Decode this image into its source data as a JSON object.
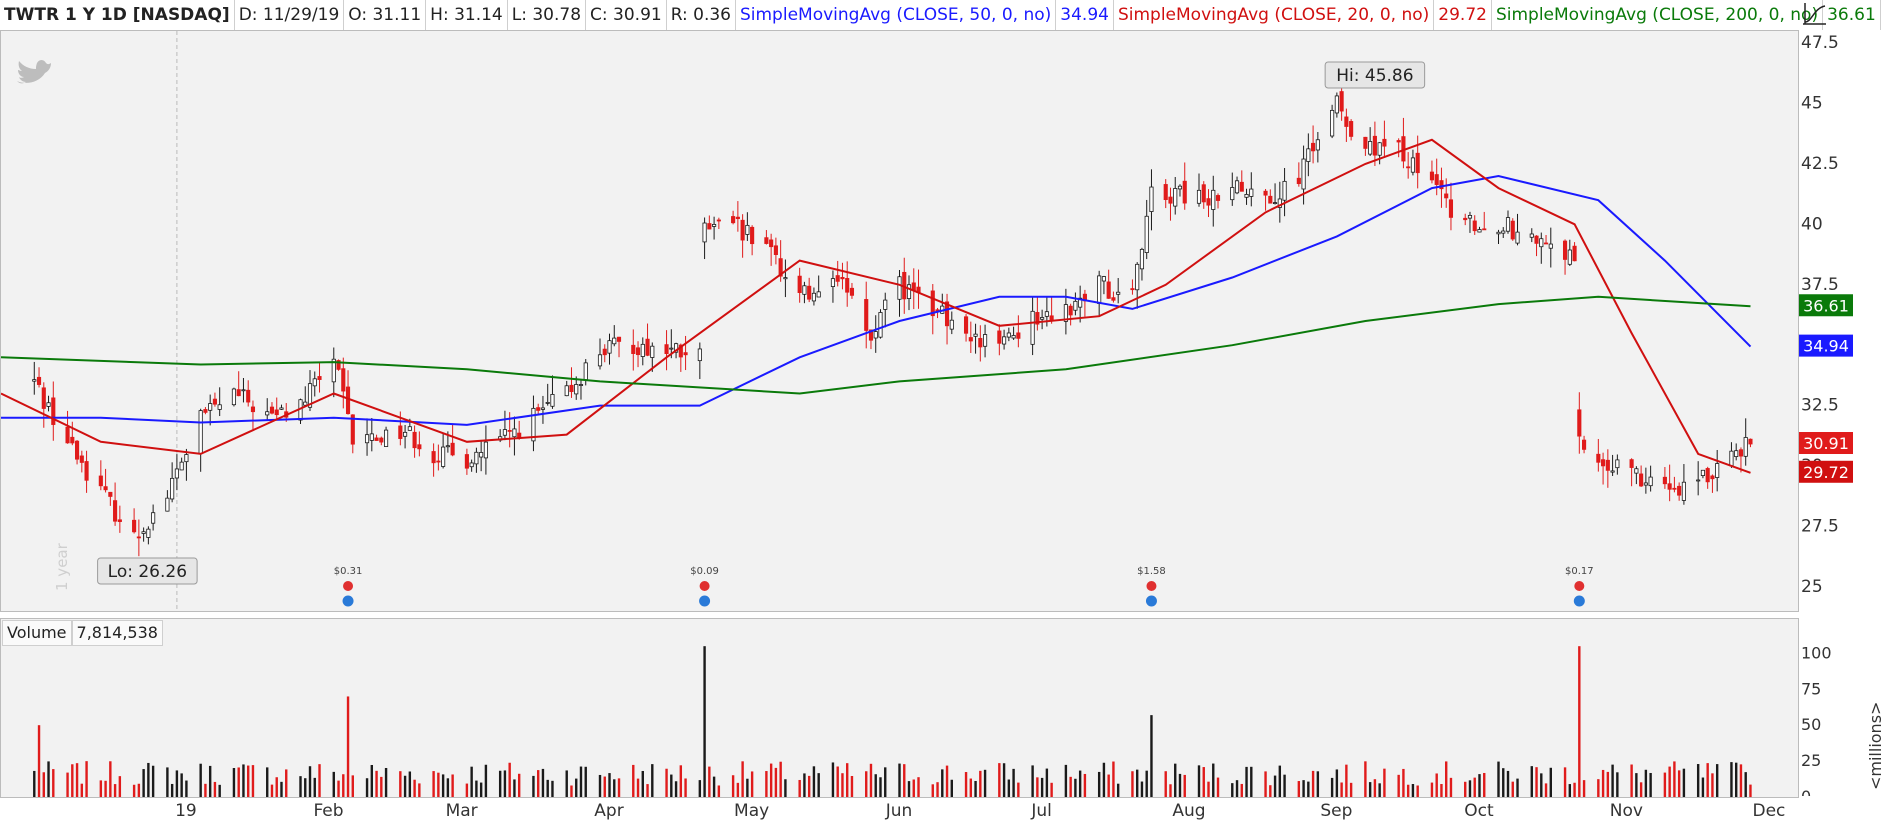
{
  "header": {
    "symbol": "TWTR 1 Y 1D [NASDAQ]",
    "date": "D: 11/29/19",
    "open": "O: 31.11",
    "high": "H: 31.14",
    "low": "L: 30.78",
    "close": "C: 30.91",
    "range": "R: 0.36",
    "sma50_label": "SimpleMovingAvg (CLOSE, 50, 0, no)",
    "sma50_value": "34.94",
    "sma20_label": "SimpleMovingAvg (CLOSE, 20, 0, no)",
    "sma20_value": "29.72",
    "sma200_label": "SimpleMovingAvg (CLOSE, 200, 0, no)",
    "sma200_value": "36.61"
  },
  "volume_header": {
    "label": "Volume",
    "value": "7,814,538"
  },
  "colors": {
    "up": "#1a1a1a",
    "down": "#e01b1b",
    "sma50": "#1a1aff",
    "sma20": "#d01010",
    "sma200": "#0a7a0a",
    "panel": "#f2f2f2"
  },
  "icons": {
    "logo": "twitter-bird-icon",
    "tool": "drawing-tool-icon"
  },
  "chart_data": [
    {
      "type": "candlestick",
      "ylim": [
        24,
        48
      ],
      "y_ticks": [
        "25",
        "27.5",
        "30",
        "32.5",
        "35",
        "37.5",
        "40",
        "42.5",
        "45",
        "47.5"
      ],
      "x_ticks": [
        "19",
        "Feb",
        "Mar",
        "Apr",
        "May",
        "Jun",
        "Jul",
        "Aug",
        "Sep",
        "Oct",
        "Nov",
        "Dec"
      ],
      "annotations": {
        "high": "Hi: 45.86",
        "low": "Lo: 26.26",
        "watermark": "1 year"
      },
      "last_value_badges": [
        {
          "series": "SMA 200",
          "value": "36.61",
          "color": "#0a7a0a"
        },
        {
          "series": "SMA 50",
          "value": "34.94",
          "color": "#1a1aff"
        },
        {
          "series": "Close",
          "value": "30.91",
          "color": "#e01b1b"
        },
        {
          "series": "SMA 20",
          "value": "29.72",
          "color": "#d01010"
        }
      ],
      "events": [
        {
          "date": "2019-02-07",
          "label": "$0.31"
        },
        {
          "date": "2019-04-23",
          "label": "$0.09"
        },
        {
          "date": "2019-07-26",
          "label": "$1.58"
        },
        {
          "date": "2019-10-24",
          "label": "$0.17"
        }
      ],
      "close_path": [
        {
          "date": "2018-12-03",
          "close": 33.5
        },
        {
          "date": "2018-12-10",
          "close": 31.0
        },
        {
          "date": "2018-12-17",
          "close": 29.0
        },
        {
          "date": "2018-12-24",
          "close": 27.0
        },
        {
          "date": "2018-12-31",
          "close": 28.8
        },
        {
          "date": "2019-01-07",
          "close": 32.0
        },
        {
          "date": "2019-01-14",
          "close": 33.0
        },
        {
          "date": "2019-01-22",
          "close": 32.0
        },
        {
          "date": "2019-01-28",
          "close": 32.5
        },
        {
          "date": "2019-02-04",
          "close": 34.5
        },
        {
          "date": "2019-02-08",
          "close": 31.0
        },
        {
          "date": "2019-02-19",
          "close": 31.5
        },
        {
          "date": "2019-02-25",
          "close": 30.5
        },
        {
          "date": "2019-03-04",
          "close": 30.3
        },
        {
          "date": "2019-03-11",
          "close": 31.0
        },
        {
          "date": "2019-03-18",
          "close": 32.0
        },
        {
          "date": "2019-03-25",
          "close": 33.0
        },
        {
          "date": "2019-04-01",
          "close": 34.8
        },
        {
          "date": "2019-04-08",
          "close": 35.0
        },
        {
          "date": "2019-04-15",
          "close": 34.8
        },
        {
          "date": "2019-04-22",
          "close": 34.5
        },
        {
          "date": "2019-04-23",
          "close": 39.8
        },
        {
          "date": "2019-04-29",
          "close": 40.0
        },
        {
          "date": "2019-05-06",
          "close": 39.0
        },
        {
          "date": "2019-05-13",
          "close": 37.0
        },
        {
          "date": "2019-05-20",
          "close": 38.0
        },
        {
          "date": "2019-05-28",
          "close": 35.5
        },
        {
          "date": "2019-06-03",
          "close": 37.5
        },
        {
          "date": "2019-06-10",
          "close": 36.5
        },
        {
          "date": "2019-06-17",
          "close": 35.5
        },
        {
          "date": "2019-06-24",
          "close": 35.0
        },
        {
          "date": "2019-07-01",
          "close": 36.0
        },
        {
          "date": "2019-07-08",
          "close": 36.5
        },
        {
          "date": "2019-07-15",
          "close": 37.5
        },
        {
          "date": "2019-07-22",
          "close": 37.0
        },
        {
          "date": "2019-07-26",
          "close": 41.5
        },
        {
          "date": "2019-08-05",
          "close": 41.0
        },
        {
          "date": "2019-08-12",
          "close": 41.5
        },
        {
          "date": "2019-08-19",
          "close": 41.0
        },
        {
          "date": "2019-08-26",
          "close": 42.0
        },
        {
          "date": "2019-09-03",
          "close": 45.0
        },
        {
          "date": "2019-09-09",
          "close": 43.0
        },
        {
          "date": "2019-09-16",
          "close": 43.0
        },
        {
          "date": "2019-09-23",
          "close": 41.5
        },
        {
          "date": "2019-09-30",
          "close": 40.0
        },
        {
          "date": "2019-10-07",
          "close": 40.0
        },
        {
          "date": "2019-10-14",
          "close": 39.5
        },
        {
          "date": "2019-10-23",
          "close": 38.5
        },
        {
          "date": "2019-10-24",
          "close": 31.0
        },
        {
          "date": "2019-10-31",
          "close": 30.0
        },
        {
          "date": "2019-11-07",
          "close": 29.5
        },
        {
          "date": "2019-11-14",
          "close": 29.2
        },
        {
          "date": "2019-11-21",
          "close": 29.8
        },
        {
          "date": "2019-11-25",
          "close": 30.5
        },
        {
          "date": "2019-11-29",
          "close": 30.91
        }
      ],
      "series": [
        {
          "name": "SimpleMovingAvg (CLOSE, 50, 0, no)",
          "color": "#1a1aff",
          "points": [
            {
              "date": "2018-11-26",
              "value": 32.0
            },
            {
              "date": "2018-12-17",
              "value": 32.0
            },
            {
              "date": "2019-01-07",
              "value": 31.8
            },
            {
              "date": "2019-02-04",
              "value": 32.0
            },
            {
              "date": "2019-03-04",
              "value": 31.7
            },
            {
              "date": "2019-04-01",
              "value": 32.5
            },
            {
              "date": "2019-04-22",
              "value": 32.5
            },
            {
              "date": "2019-05-13",
              "value": 34.5
            },
            {
              "date": "2019-06-03",
              "value": 36.0
            },
            {
              "date": "2019-06-24",
              "value": 37.0
            },
            {
              "date": "2019-07-08",
              "value": 37.0
            },
            {
              "date": "2019-07-22",
              "value": 36.5
            },
            {
              "date": "2019-08-12",
              "value": 37.8
            },
            {
              "date": "2019-09-03",
              "value": 39.5
            },
            {
              "date": "2019-09-23",
              "value": 41.5
            },
            {
              "date": "2019-10-07",
              "value": 42.0
            },
            {
              "date": "2019-10-28",
              "value": 41.0
            },
            {
              "date": "2019-11-11",
              "value": 38.5
            },
            {
              "date": "2019-11-29",
              "value": 34.94
            }
          ]
        },
        {
          "name": "SimpleMovingAvg (CLOSE, 20, 0, no)",
          "color": "#d01010",
          "points": [
            {
              "date": "2018-11-26",
              "value": 33.0
            },
            {
              "date": "2018-12-17",
              "value": 31.0
            },
            {
              "date": "2019-01-07",
              "value": 30.5
            },
            {
              "date": "2019-02-04",
              "value": 33.0
            },
            {
              "date": "2019-03-04",
              "value": 31.0
            },
            {
              "date": "2019-03-25",
              "value": 31.3
            },
            {
              "date": "2019-04-15",
              "value": 34.5
            },
            {
              "date": "2019-05-13",
              "value": 38.5
            },
            {
              "date": "2019-06-03",
              "value": 37.5
            },
            {
              "date": "2019-06-24",
              "value": 35.8
            },
            {
              "date": "2019-07-15",
              "value": 36.2
            },
            {
              "date": "2019-07-29",
              "value": 37.5
            },
            {
              "date": "2019-08-19",
              "value": 40.5
            },
            {
              "date": "2019-09-09",
              "value": 42.5
            },
            {
              "date": "2019-09-23",
              "value": 43.5
            },
            {
              "date": "2019-10-07",
              "value": 41.5
            },
            {
              "date": "2019-10-23",
              "value": 40.0
            },
            {
              "date": "2019-11-04",
              "value": 35.5
            },
            {
              "date": "2019-11-18",
              "value": 30.5
            },
            {
              "date": "2019-11-29",
              "value": 29.72
            }
          ]
        },
        {
          "name": "SimpleMovingAvg (CLOSE, 200, 0, no)",
          "color": "#0a7a0a",
          "points": [
            {
              "date": "2018-11-26",
              "value": 34.5
            },
            {
              "date": "2019-01-07",
              "value": 34.2
            },
            {
              "date": "2019-02-04",
              "value": 34.3
            },
            {
              "date": "2019-03-04",
              "value": 34.0
            },
            {
              "date": "2019-04-01",
              "value": 33.5
            },
            {
              "date": "2019-05-13",
              "value": 33.0
            },
            {
              "date": "2019-06-03",
              "value": 33.5
            },
            {
              "date": "2019-07-08",
              "value": 34.0
            },
            {
              "date": "2019-08-12",
              "value": 35.0
            },
            {
              "date": "2019-09-09",
              "value": 36.0
            },
            {
              "date": "2019-10-07",
              "value": 36.7
            },
            {
              "date": "2019-10-28",
              "value": 37.0
            },
            {
              "date": "2019-11-29",
              "value": 36.61
            }
          ]
        }
      ]
    },
    {
      "type": "bar",
      "ylabel": "<millions>",
      "ylim": [
        0,
        110
      ],
      "y_ticks": [
        "0",
        "25",
        "50",
        "75",
        "100"
      ],
      "spikes": [
        {
          "date": "2018-12-04",
          "value": 50,
          "direction": "down"
        },
        {
          "date": "2019-02-07",
          "value": 70,
          "direction": "down"
        },
        {
          "date": "2019-04-23",
          "value": 105,
          "direction": "up"
        },
        {
          "date": "2019-07-26",
          "value": 57,
          "direction": "up"
        },
        {
          "date": "2019-10-24",
          "value": 105,
          "direction": "down"
        }
      ],
      "typical_range": [
        8,
        25
      ]
    }
  ]
}
